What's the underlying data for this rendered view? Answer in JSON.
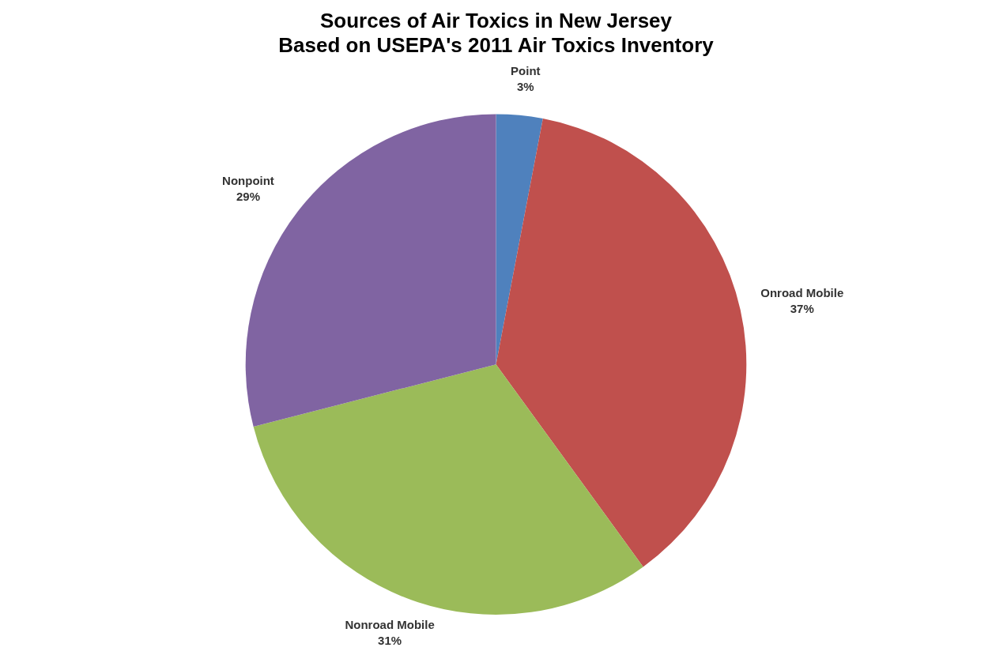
{
  "chart_data": {
    "type": "pie",
    "title": "Sources of Air Toxics in New Jersey\nBased on USEPA's 2011 Air Toxics Inventory",
    "categories": [
      "Point",
      "Onroad Mobile",
      "Nonroad Mobile",
      "Nonpoint"
    ],
    "values": [
      3,
      37,
      31,
      29
    ],
    "colors": [
      "#4f81bd",
      "#c0504d",
      "#9bbb59",
      "#8064a2"
    ],
    "value_labels": [
      "3%",
      "37%",
      "31%",
      "29%"
    ],
    "legend": false
  }
}
